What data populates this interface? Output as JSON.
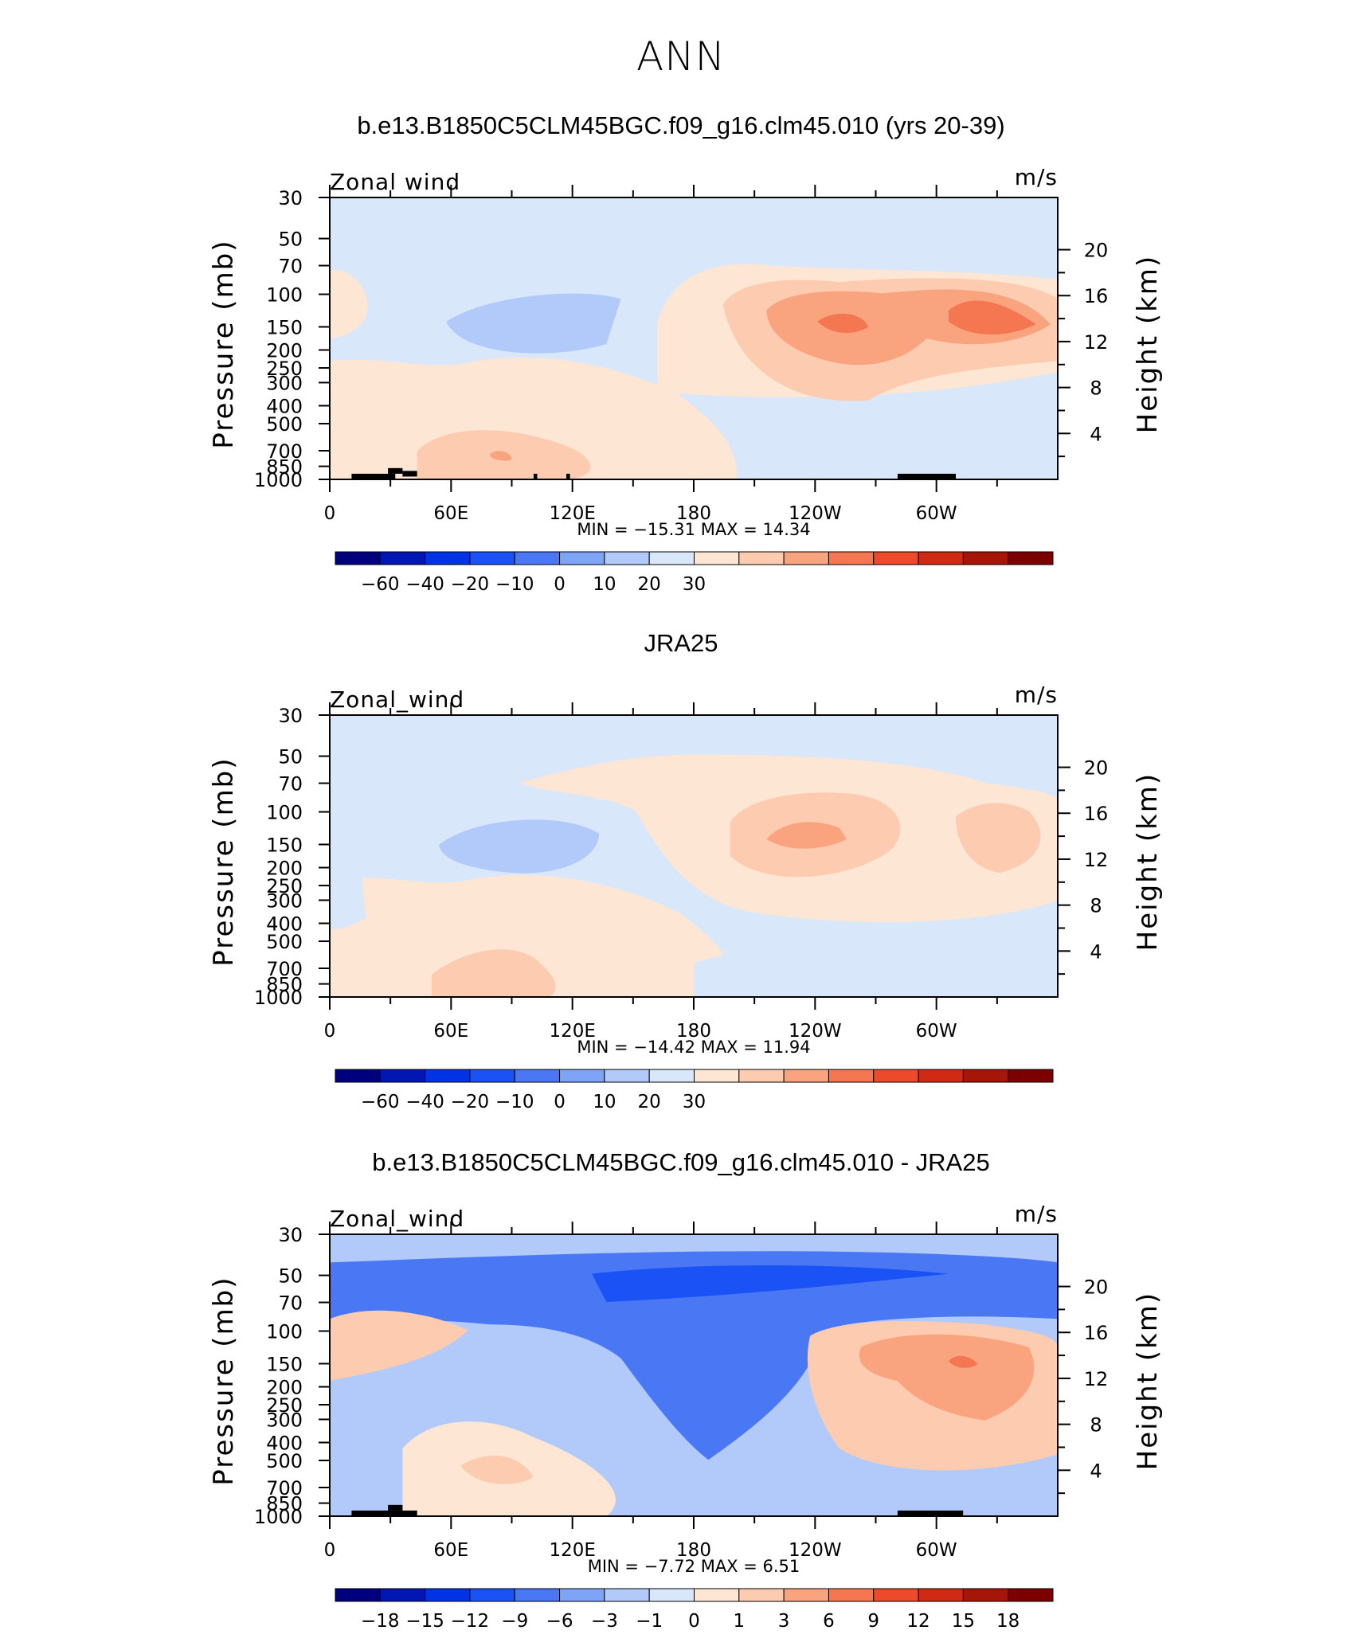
{
  "page_title": "ANN",
  "panels": [
    {
      "title": "b.e13.B1850C5CLM45BGC.f09_g16.clm45.010 (yrs 20-39)",
      "variable": "Zonal wind",
      "units": "m/s",
      "min_max": "MIN =  −15.31   MAX =   14.34",
      "colorbar_labels": [
        "−60",
        "−40",
        "−20",
        "−10",
        "0",
        "10",
        "20",
        "30"
      ]
    },
    {
      "title": "JRA25",
      "variable": "Zonal_wind",
      "units": "m/s",
      "min_max": "MIN =  −14.42   MAX =   11.94",
      "colorbar_labels": [
        "−60",
        "−40",
        "−20",
        "−10",
        "0",
        "10",
        "20",
        "30"
      ]
    },
    {
      "title": "b.e13.B1850C5CLM45BGC.f09_g16.clm45.010 - JRA25",
      "variable": "Zonal_wind",
      "units": "m/s",
      "min_max": "MIN =    −7.72   MAX =    6.51",
      "colorbar_labels": [
        "−18",
        "−15",
        "−12",
        "−9",
        "−6",
        "−3",
        "−1",
        "0",
        "1",
        "3",
        "6",
        "9",
        "12",
        "15",
        "18"
      ]
    }
  ],
  "chart_data": {
    "type": "heatmap",
    "left_axis_label": "Pressure (mb)",
    "right_axis_label": "Height (km)",
    "pressure_ticks": [
      "30",
      "50",
      "70",
      "100",
      "150",
      "200",
      "250",
      "300",
      "400",
      "500",
      "700",
      "850",
      "1000"
    ],
    "height_ticks": [
      "20",
      "16",
      "12",
      "8",
      "4"
    ],
    "longitude_ticks": [
      "0",
      "60E",
      "120E",
      "180",
      "120W",
      "60W"
    ],
    "colorbar_colors": [
      "#00007f",
      "#0017b4",
      "#0033e5",
      "#1a52f5",
      "#4a78f4",
      "#7ea4f8",
      "#b1caf9",
      "#d9e7fb",
      "#fde6d4",
      "#fccbb0",
      "#f9a37f",
      "#f47751",
      "#ec4a2a",
      "#d12a14",
      "#a61608",
      "#7d0000"
    ]
  }
}
